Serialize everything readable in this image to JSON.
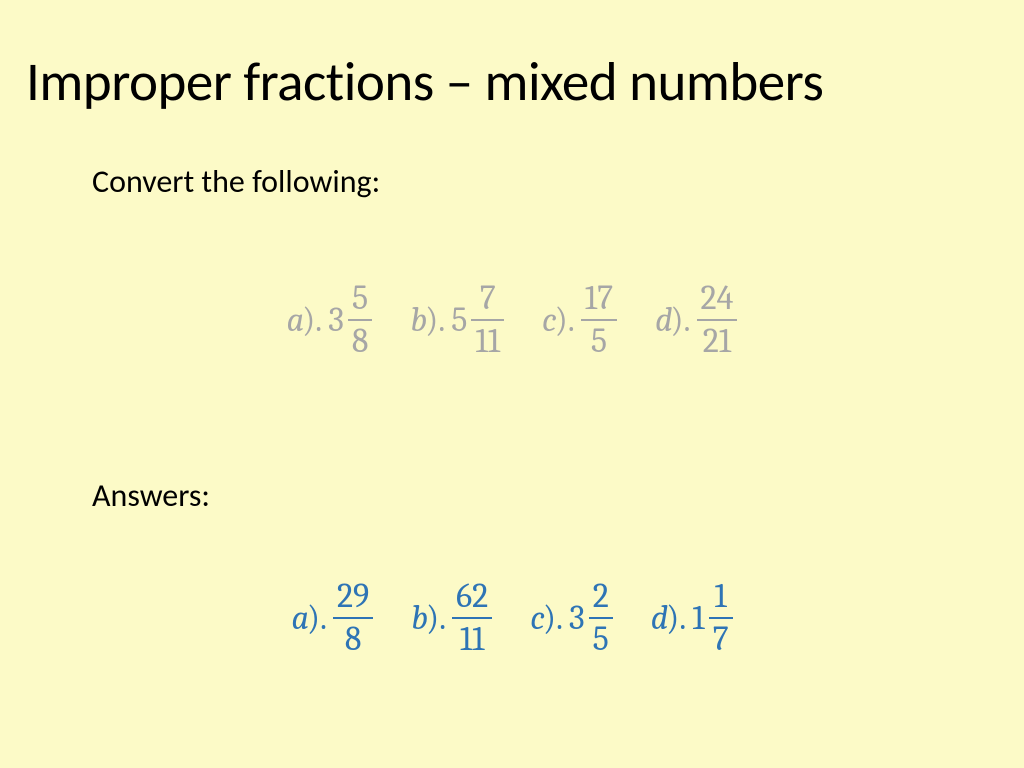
{
  "title": "Improper fractions – mixed numbers",
  "convert_label": "Convert the following:",
  "answers_label": "Answers:",
  "colors": {
    "background": "#fcfac7",
    "title_text": "#000000",
    "body_text": "#000000",
    "problem_math": "#a6a6a6",
    "answer_math": "#2e74b5"
  },
  "typography": {
    "title_fontsize": 55,
    "body_fontsize": 32,
    "math_fontsize": 34,
    "title_font": "Calibri",
    "math_font": "Cambria Math"
  },
  "problems": [
    {
      "label": "a",
      "whole": "3",
      "num": "5",
      "den": "8"
    },
    {
      "label": "b",
      "whole": "5",
      "num": "7",
      "den": "11"
    },
    {
      "label": "c",
      "whole": "",
      "num": "17",
      "den": "5"
    },
    {
      "label": "d",
      "whole": "",
      "num": "24",
      "den": "21"
    }
  ],
  "answers": [
    {
      "label": "a",
      "whole": "",
      "num": "29",
      "den": "8"
    },
    {
      "label": "b",
      "whole": "",
      "num": "62",
      "den": "11"
    },
    {
      "label": "c",
      "whole": "3",
      "num": "2",
      "den": "5"
    },
    {
      "label": "d",
      "whole": "1",
      "num": "1",
      "den": "7"
    }
  ]
}
